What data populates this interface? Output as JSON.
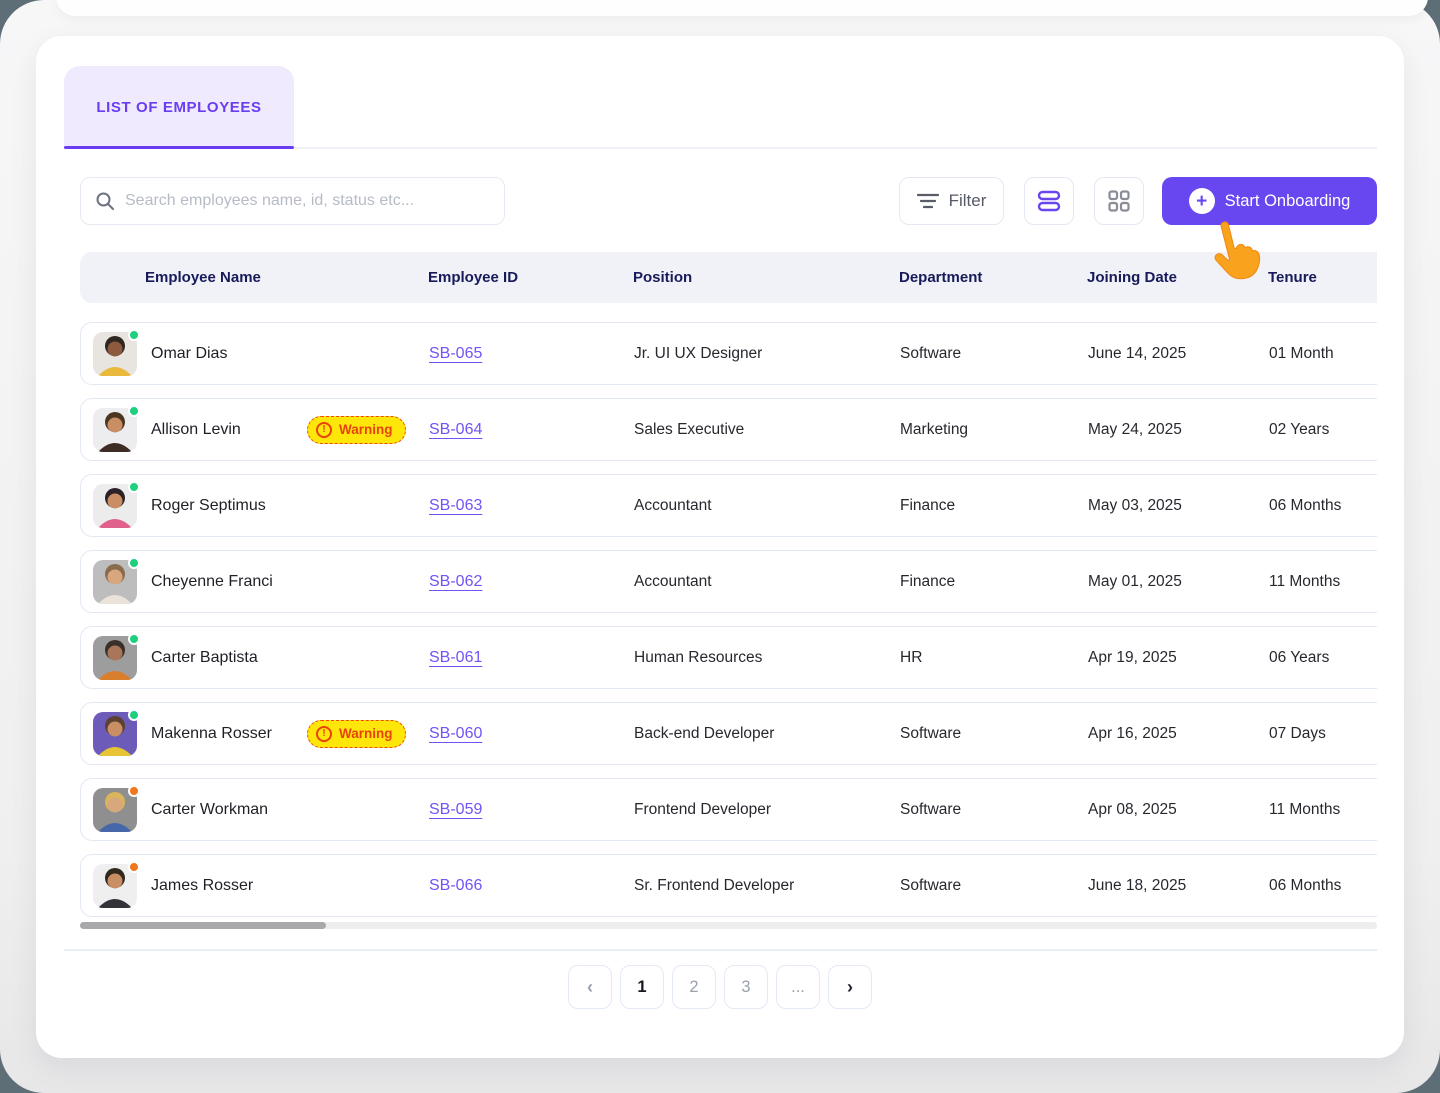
{
  "tab": {
    "label": "LIST OF EMPLOYEES"
  },
  "toolbar": {
    "search_placeholder": "Search employees name, id, status etc...",
    "filter_label": "Filter",
    "start_onboarding_label": "Start Onboarding",
    "plus_glyph": "+"
  },
  "badges": {
    "warning_label": "Warning",
    "warning_glyph": "!"
  },
  "table": {
    "columns": [
      "Employee Name",
      "Employee ID",
      "Position",
      "Department",
      "Joining Date",
      "Tenure"
    ],
    "rows": [
      {
        "name": "Omar Dias",
        "warning": false,
        "id": "SB-065",
        "position": "Jr. UI UX Designer",
        "department": "Software",
        "joining_date": "June 14, 2025",
        "tenure": "01 Month",
        "status_color": "green",
        "avatar": {
          "bg": "#e8e5e1",
          "hair": "#2e2620",
          "skin": "#8c5a3c",
          "shirt": "#e8b93a"
        }
      },
      {
        "name": "Allison Levin",
        "warning": true,
        "id": "SB-064",
        "position": "Sales Executive",
        "department": "Marketing",
        "joining_date": "May 24, 2025",
        "tenure": "02 Years",
        "status_color": "green",
        "avatar": {
          "bg": "#ededef",
          "hair": "#4a3623",
          "skin": "#c98e63",
          "shirt": "#3e2b23"
        }
      },
      {
        "name": "Roger Septimus",
        "warning": false,
        "id": "SB-063",
        "position": "Accountant",
        "department": "Finance",
        "joining_date": "May 03, 2025",
        "tenure": "06 Months",
        "status_color": "green",
        "avatar": {
          "bg": "#ececec",
          "hair": "#2b2126",
          "skin": "#c98e63",
          "shirt": "#e0628c"
        }
      },
      {
        "name": "Cheyenne Franci",
        "warning": false,
        "id": "SB-062",
        "position": "Accountant",
        "department": "Finance",
        "joining_date": "May 01, 2025",
        "tenure": "11 Months",
        "status_color": "green",
        "avatar": {
          "bg": "#bdbdbd",
          "hair": "#8a6b4d",
          "skin": "#d8a77e",
          "shirt": "#e9e3da"
        }
      },
      {
        "name": "Carter Baptista",
        "warning": false,
        "id": "SB-061",
        "position": "Human Resources",
        "department": "HR",
        "joining_date": "Apr 19, 2025",
        "tenure": "06 Years",
        "status_color": "green",
        "avatar": {
          "bg": "#9d9d9d",
          "hair": "#3a302a",
          "skin": "#a9765a",
          "shirt": "#d97e2d"
        }
      },
      {
        "name": "Makenna Rosser",
        "warning": true,
        "id": "SB-060",
        "position": "Back-end Developer",
        "department": "Software",
        "joining_date": "Apr 16, 2025",
        "tenure": "07 Days",
        "status_color": "green",
        "avatar": {
          "bg": "#6c5bb8",
          "hair": "#5c4030",
          "skin": "#c98e63",
          "shirt": "#e7c433"
        }
      },
      {
        "name": "Carter Workman",
        "warning": false,
        "id": "SB-059",
        "position": "Frontend Developer",
        "department": "Software",
        "joining_date": "Apr 08, 2025",
        "tenure": "11 Months",
        "status_color": "orange",
        "avatar": {
          "bg": "#8f8f8f",
          "hair": "#d9b55c",
          "skin": "#d8a77e",
          "shirt": "#4668a8"
        }
      },
      {
        "name": "James Rosser",
        "warning": false,
        "id": "SB-066",
        "position": "Sr. Frontend Developer",
        "department": "Software",
        "joining_date": "June 18, 2025",
        "tenure": "06 Months",
        "status_color": "orange",
        "avatar": {
          "bg": "#efefef",
          "hair": "#32281e",
          "skin": "#c98e63",
          "shirt": "#33343a"
        }
      }
    ]
  },
  "pagination": {
    "prev_glyph": "‹",
    "next_glyph": "›",
    "pages": [
      "1",
      "2",
      "3",
      "..."
    ],
    "active_page": "1"
  },
  "colors": {
    "accent_purple": "#6847f1",
    "tab_background": "#efeafd",
    "warning_yellow": "#ffe60a",
    "warning_red": "#e8430c",
    "status_green": "#1ed07e",
    "status_orange": "#f2761b",
    "header_text": "#181a5a"
  }
}
